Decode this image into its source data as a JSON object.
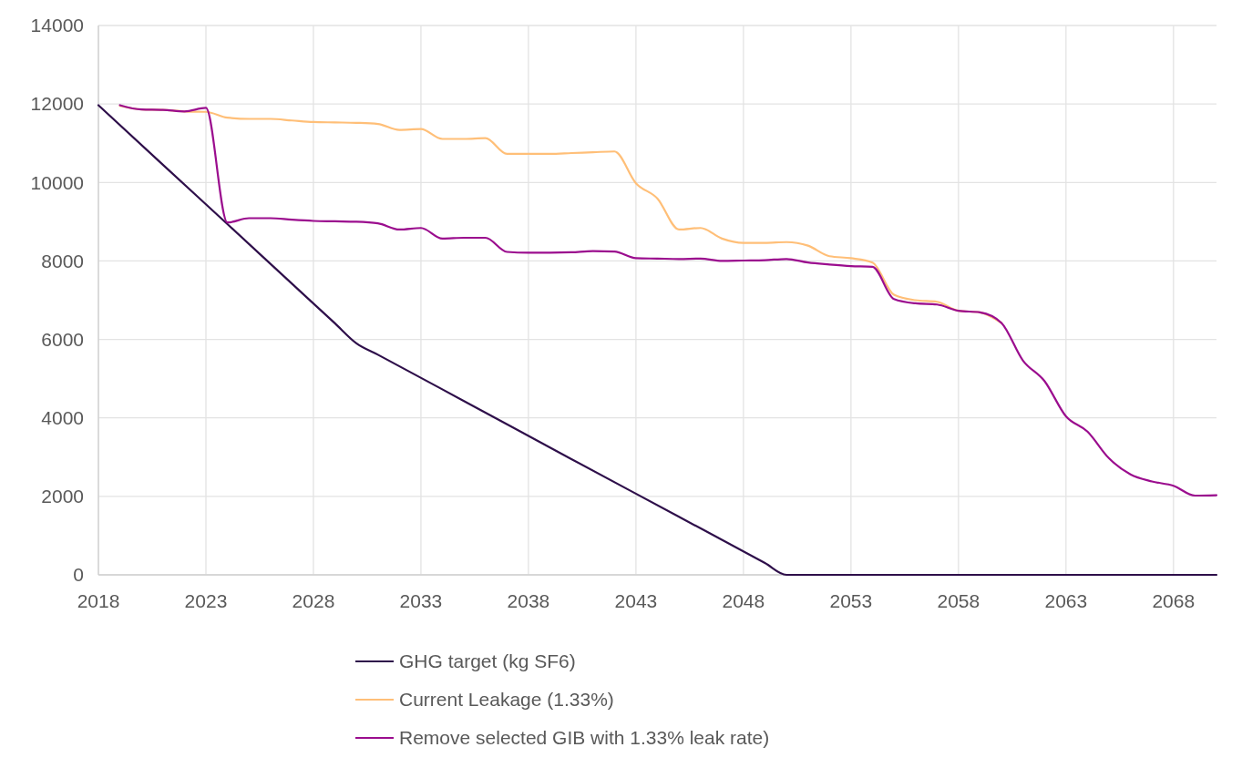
{
  "chart_data": {
    "type": "line",
    "xlim": [
      2018,
      2070
    ],
    "ylim": [
      0,
      14000
    ],
    "xticks": [
      2018,
      2023,
      2028,
      2033,
      2038,
      2043,
      2048,
      2053,
      2058,
      2063,
      2068
    ],
    "yticks": [
      0,
      2000,
      4000,
      6000,
      8000,
      10000,
      12000,
      14000
    ],
    "grid": true,
    "legend": "bottom",
    "line_style": "solid",
    "marker": "none",
    "series": [
      {
        "name": "GHG target (kg SF6)",
        "color": "#2e0f4a",
        "x": [
          2018,
          2021,
          2024,
          2027,
          2029,
          2030,
          2031,
          2035,
          2040,
          2045,
          2049,
          2050,
          2051,
          2055,
          2060,
          2065,
          2070
        ],
        "values": [
          11970,
          10450,
          8940,
          7420,
          6410,
          5900,
          5610,
          4430,
          2950,
          1480,
          300,
          0,
          0,
          0,
          0,
          0,
          0
        ]
      },
      {
        "name": "Current Leakage (1.33%)",
        "color": "#ffbf78",
        "x": [
          2019,
          2020,
          2021,
          2022,
          2023,
          2024,
          2025,
          2026,
          2027,
          2028,
          2029,
          2030,
          2031,
          2032,
          2033,
          2034,
          2035,
          2036,
          2037,
          2038,
          2039,
          2040,
          2041,
          2042,
          2043,
          2044,
          2045,
          2046,
          2047,
          2048,
          2049,
          2050,
          2051,
          2052,
          2053,
          2054,
          2055,
          2056,
          2057,
          2058,
          2059,
          2060
        ],
        "values": [
          11950,
          11860,
          11850,
          11810,
          11800,
          11650,
          11620,
          11620,
          11580,
          11540,
          11530,
          11520,
          11490,
          11340,
          11360,
          11110,
          11110,
          11130,
          10730,
          10730,
          10730,
          10750,
          10770,
          10790,
          9980,
          9590,
          8800,
          8840,
          8570,
          8460,
          8460,
          8480,
          8390,
          8120,
          8070,
          7960,
          7140,
          7000,
          6960,
          6730,
          6690,
          6420
        ]
      },
      {
        "name": "Remove selected GIB with 1.33% leak rate)",
        "color": "#9b0d8e",
        "x": [
          2019,
          2020,
          2021,
          2022,
          2023,
          2024,
          2025,
          2026,
          2027,
          2028,
          2029,
          2030,
          2031,
          2032,
          2033,
          2034,
          2035,
          2036,
          2037,
          2038,
          2039,
          2040,
          2041,
          2042,
          2043,
          2044,
          2045,
          2046,
          2047,
          2048,
          2049,
          2050,
          2051,
          2052,
          2053,
          2054,
          2055,
          2056,
          2057,
          2058,
          2059,
          2060,
          2061,
          2062,
          2063,
          2064,
          2065,
          2066,
          2067,
          2068,
          2069,
          2070
        ],
        "values": [
          11970,
          11860,
          11850,
          11810,
          11900,
          8980,
          9090,
          9090,
          9050,
          9020,
          9010,
          9000,
          8960,
          8800,
          8840,
          8570,
          8590,
          8590,
          8230,
          8210,
          8210,
          8220,
          8250,
          8240,
          8070,
          8060,
          8050,
          8060,
          8000,
          8010,
          8020,
          8050,
          7960,
          7910,
          7870,
          7850,
          7030,
          6920,
          6890,
          6730,
          6690,
          6420,
          5460,
          4940,
          4040,
          3650,
          2970,
          2560,
          2380,
          2270,
          2020,
          2030
        ]
      }
    ]
  }
}
